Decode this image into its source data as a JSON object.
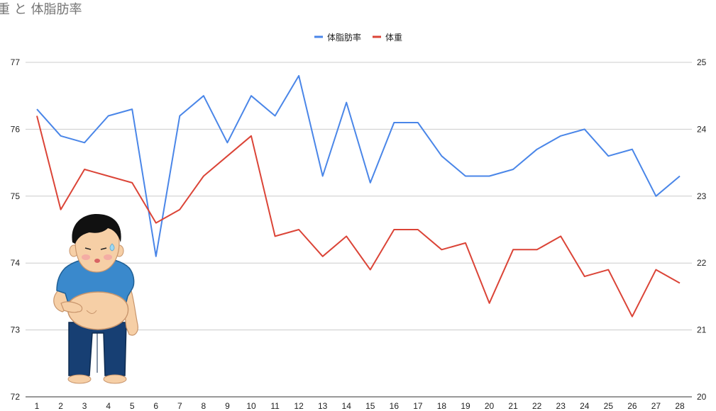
{
  "chart_data": {
    "type": "line",
    "title": "重 と 体脂肪率",
    "x": [
      "1",
      "2",
      "3",
      "4",
      "5",
      "6",
      "7",
      "8",
      "9",
      "10",
      "11",
      "12",
      "13",
      "14",
      "15",
      "16",
      "17",
      "18",
      "19",
      "20",
      "21",
      "22",
      "23",
      "24",
      "25",
      "26",
      "27",
      "28"
    ],
    "legend_position": "top-center",
    "grid": true,
    "y_left": {
      "ylim": [
        72,
        77
      ],
      "ticks": [
        "72",
        "73",
        "74",
        "75",
        "76",
        "77"
      ]
    },
    "y_right": {
      "ylim": [
        20,
        25
      ],
      "ticks": [
        "20",
        "21",
        "22",
        "23",
        "24",
        "25"
      ]
    },
    "series": [
      {
        "name": "体脂肪率",
        "color": "#4a86e8",
        "axis": "right",
        "values": [
          24.3,
          23.9,
          23.8,
          24.2,
          24.3,
          22.1,
          24.2,
          24.5,
          23.8,
          24.5,
          24.2,
          24.8,
          23.3,
          24.4,
          23.2,
          24.1,
          24.1,
          23.6,
          23.3,
          23.3,
          23.4,
          23.7,
          23.9,
          24.0,
          23.6,
          23.7,
          23.0,
          23.3
        ]
      },
      {
        "name": "体重",
        "color": "#db4437",
        "axis": "left",
        "values": [
          76.2,
          74.8,
          75.4,
          75.3,
          75.2,
          74.6,
          74.8,
          75.3,
          75.6,
          75.9,
          74.4,
          74.5,
          74.1,
          74.4,
          73.9,
          74.5,
          74.5,
          74.2,
          74.3,
          73.4,
          74.2,
          74.2,
          74.4,
          73.8,
          73.9,
          73.2,
          73.9,
          73.7
        ]
      }
    ]
  }
}
